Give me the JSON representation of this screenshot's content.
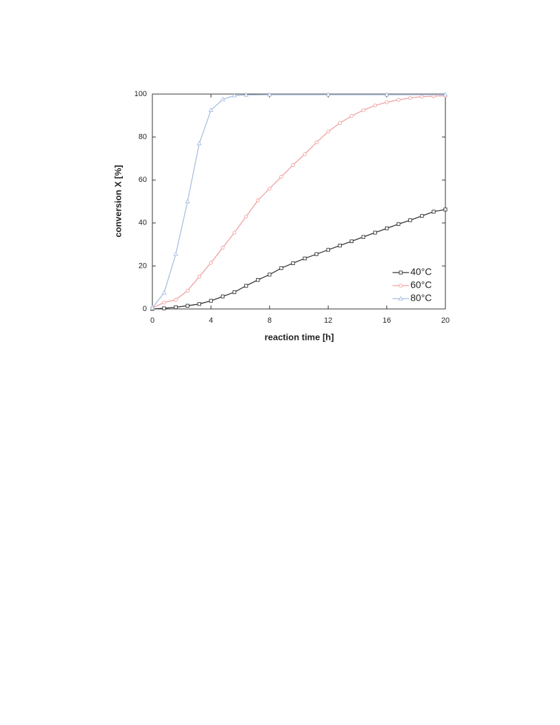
{
  "chart_data": {
    "type": "line",
    "xlabel": "reaction time [h]",
    "ylabel": "conversion X [%]",
    "xlim": [
      0,
      20
    ],
    "xticks": [
      0,
      4,
      8,
      12,
      16,
      20
    ],
    "ylim": [
      0,
      100
    ],
    "yticks": [
      0,
      20,
      40,
      60,
      80,
      100
    ],
    "legend": "lower right",
    "series": [
      {
        "name": "40°C",
        "color": "#333333",
        "marker": "square",
        "x": [
          0,
          0.8,
          1.6,
          2.4,
          3.2,
          4,
          4.8,
          5.6,
          6.4,
          7.2,
          8,
          8.8,
          9.6,
          10.4,
          11.2,
          12,
          12.8,
          13.6,
          14.4,
          15.2,
          16,
          16.8,
          17.6,
          18.4,
          19.2,
          20
        ],
        "values": [
          0,
          0.3,
          0.8,
          1.5,
          2.3,
          3.8,
          5.8,
          7.8,
          10.8,
          13.5,
          16,
          19,
          21.3,
          23.5,
          25.5,
          27.5,
          29.5,
          31.5,
          33.5,
          35.5,
          37.5,
          39.5,
          41.3,
          43.3,
          45.3,
          46.3
        ]
      },
      {
        "name": "60°C",
        "color": "#f0a0a0",
        "marker": "circle",
        "x": [
          0,
          0.8,
          1.6,
          2.4,
          3.2,
          4,
          4.8,
          5.6,
          6.4,
          7.2,
          8,
          8.8,
          9.6,
          10.4,
          11.2,
          12,
          12.8,
          13.6,
          14.4,
          15.2,
          16,
          16.8,
          17.6,
          18.4,
          19.2,
          20
        ],
        "values": [
          0.5,
          3,
          4.3,
          8.5,
          15,
          21.5,
          28.5,
          35.5,
          43,
          50.5,
          56,
          61.5,
          67,
          72,
          77.5,
          82.5,
          86.5,
          89.8,
          92.5,
          94.7,
          96.2,
          97.3,
          98.2,
          98.8,
          99,
          99.2
        ]
      },
      {
        "name": "80°C",
        "color": "#a8bfe0",
        "marker": "triangle",
        "x": [
          0,
          0.8,
          1.6,
          2.4,
          3.2,
          4,
          4.8,
          5.6,
          6.4,
          8,
          12,
          16,
          20
        ],
        "values": [
          0.5,
          7.5,
          25.5,
          50,
          77,
          92.5,
          97.5,
          99.3,
          99.6,
          99.7,
          99.7,
          99.7,
          99.7
        ]
      }
    ]
  }
}
